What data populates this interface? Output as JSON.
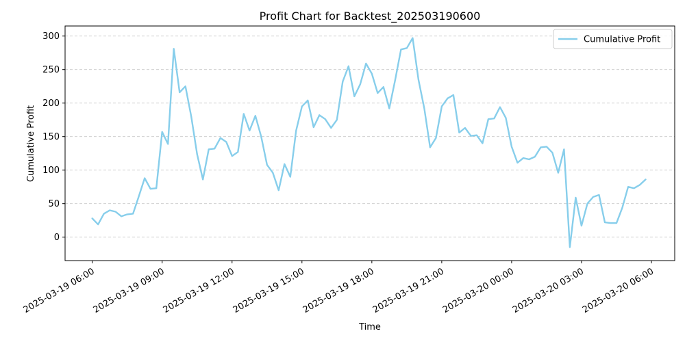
{
  "chart_data": {
    "type": "line",
    "title": "Profit Chart for Backtest_202503190600",
    "xlabel": "Time",
    "ylabel": "Cumulative Profit",
    "xlim": [
      "2025-03-19 04:50",
      "2025-03-20 07:00"
    ],
    "ylim": [
      -35,
      315
    ],
    "x_ticks": [
      "2025-03-19 06:00",
      "2025-03-19 09:00",
      "2025-03-19 12:00",
      "2025-03-19 15:00",
      "2025-03-19 18:00",
      "2025-03-19 21:00",
      "2025-03-20 00:00",
      "2025-03-20 03:00",
      "2025-03-20 06:00"
    ],
    "x_tick_labels": [
      "2025-03-19 06:00",
      "2025-03-19 09:00",
      "2025-03-19 12:00",
      "2025-03-19 15:00",
      "2025-03-19 18:00",
      "2025-03-19 21:00",
      "2025-03-20 00:00",
      "2025-03-20 03:00",
      "2025-03-20 06:00"
    ],
    "y_ticks": [
      0,
      50,
      100,
      150,
      200,
      250,
      300
    ],
    "y_tick_labels": [
      "0",
      "50",
      "100",
      "150",
      "200",
      "250",
      "300"
    ],
    "grid": "y-dashed",
    "legend_position": "top-right",
    "series": [
      {
        "name": "Cumulative Profit",
        "color": "#87CEEB",
        "x": [
          "2025-03-19 06:00",
          "2025-03-19 06:15",
          "2025-03-19 06:30",
          "2025-03-19 06:45",
          "2025-03-19 07:00",
          "2025-03-19 07:15",
          "2025-03-19 07:30",
          "2025-03-19 07:45",
          "2025-03-19 08:00",
          "2025-03-19 08:15",
          "2025-03-19 08:30",
          "2025-03-19 08:45",
          "2025-03-19 09:00",
          "2025-03-19 09:15",
          "2025-03-19 09:30",
          "2025-03-19 09:45",
          "2025-03-19 10:00",
          "2025-03-19 10:15",
          "2025-03-19 10:30",
          "2025-03-19 10:45",
          "2025-03-19 11:00",
          "2025-03-19 11:15",
          "2025-03-19 11:30",
          "2025-03-19 11:45",
          "2025-03-19 12:00",
          "2025-03-19 12:15",
          "2025-03-19 12:30",
          "2025-03-19 12:45",
          "2025-03-19 13:00",
          "2025-03-19 13:15",
          "2025-03-19 13:30",
          "2025-03-19 13:45",
          "2025-03-19 14:00",
          "2025-03-19 14:15",
          "2025-03-19 14:30",
          "2025-03-19 14:45",
          "2025-03-19 15:00",
          "2025-03-19 15:15",
          "2025-03-19 15:30",
          "2025-03-19 15:45",
          "2025-03-19 16:00",
          "2025-03-19 16:15",
          "2025-03-19 16:30",
          "2025-03-19 16:45",
          "2025-03-19 17:00",
          "2025-03-19 17:15",
          "2025-03-19 17:30",
          "2025-03-19 17:45",
          "2025-03-19 18:00",
          "2025-03-19 18:15",
          "2025-03-19 18:30",
          "2025-03-19 18:45",
          "2025-03-19 19:00",
          "2025-03-19 19:15",
          "2025-03-19 19:30",
          "2025-03-19 19:45",
          "2025-03-19 20:00",
          "2025-03-19 20:15",
          "2025-03-19 20:30",
          "2025-03-19 20:45",
          "2025-03-19 21:00",
          "2025-03-19 21:15",
          "2025-03-19 21:30",
          "2025-03-19 21:45",
          "2025-03-19 22:00",
          "2025-03-19 22:15",
          "2025-03-19 22:30",
          "2025-03-19 22:45",
          "2025-03-19 23:00",
          "2025-03-19 23:15",
          "2025-03-19 23:30",
          "2025-03-19 23:45",
          "2025-03-20 00:00",
          "2025-03-20 00:15",
          "2025-03-20 00:30",
          "2025-03-20 00:45",
          "2025-03-20 01:00",
          "2025-03-20 01:15",
          "2025-03-20 01:30",
          "2025-03-20 01:45",
          "2025-03-20 02:00",
          "2025-03-20 02:15",
          "2025-03-20 02:30",
          "2025-03-20 02:45",
          "2025-03-20 03:00",
          "2025-03-20 03:15",
          "2025-03-20 03:30",
          "2025-03-20 03:45",
          "2025-03-20 04:00",
          "2025-03-20 04:15",
          "2025-03-20 04:30",
          "2025-03-20 04:45",
          "2025-03-20 05:00",
          "2025-03-20 05:15",
          "2025-03-20 05:30",
          "2025-03-20 05:45"
        ],
        "y": [
          28,
          19,
          35,
          40,
          38,
          31,
          34,
          35,
          61,
          88,
          72,
          73,
          157,
          139,
          281,
          216,
          225,
          180,
          124,
          86,
          131,
          132,
          148,
          142,
          121,
          127,
          184,
          159,
          181,
          150,
          108,
          96,
          70,
          109,
          90,
          159,
          195,
          204,
          164,
          182,
          176,
          163,
          175,
          232,
          255,
          210,
          228,
          259,
          244,
          215,
          224,
          192,
          234,
          280,
          282,
          297,
          235,
          192,
          134,
          148,
          195,
          207,
          212,
          156,
          163,
          151,
          152,
          140,
          176,
          177,
          194,
          178,
          135,
          111,
          118,
          116,
          120,
          134,
          135,
          126,
          96,
          131,
          -15,
          59,
          17,
          50,
          60,
          63,
          22,
          21,
          21,
          44,
          75,
          73,
          78,
          86
        ]
      }
    ]
  }
}
